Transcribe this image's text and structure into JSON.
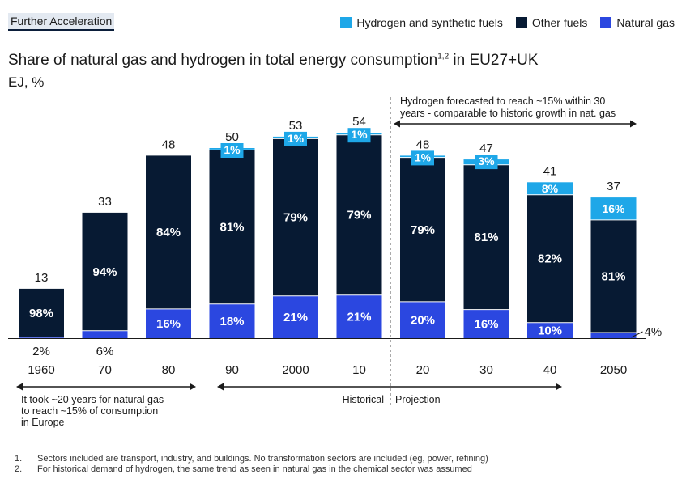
{
  "header": {
    "tag": "Further Acceleration"
  },
  "legend": [
    {
      "label": "Hydrogen and synthetic fuels",
      "color": "#1ea7e8"
    },
    {
      "label": "Other fuels",
      "color": "#071a33"
    },
    {
      "label": "Natural gas",
      "color": "#2b47e0"
    }
  ],
  "title": {
    "text": "Share of natural gas and hydrogen in total energy consumption",
    "sup": "1,2",
    "suffix": " in EU27+UK"
  },
  "subtitle": "EJ, %",
  "chart_data": {
    "type": "bar",
    "stacked": true,
    "categories": [
      "1960",
      "70",
      "80",
      "90",
      "2000",
      "10",
      "20",
      "30",
      "40",
      "2050"
    ],
    "totals": [
      13,
      33,
      48,
      50,
      53,
      54,
      48,
      47,
      41,
      37
    ],
    "series": [
      {
        "name": "Natural gas",
        "color": "#2b47e0",
        "shares": [
          2,
          6,
          16,
          18,
          21,
          21,
          20,
          16,
          10,
          4
        ],
        "labels": [
          "2%",
          "6%",
          "16%",
          "18%",
          "21%",
          "21%",
          "20%",
          "16%",
          "10%",
          "4%"
        ]
      },
      {
        "name": "Other fuels",
        "color": "#071a33",
        "shares": [
          98,
          94,
          84,
          81,
          79,
          79,
          79,
          81,
          82,
          81
        ],
        "labels": [
          "98%",
          "94%",
          "84%",
          "81%",
          "79%",
          "79%",
          "79%",
          "81%",
          "82%",
          "81%"
        ]
      },
      {
        "name": "Hydrogen and synthetic fuels",
        "color": "#1ea7e8",
        "shares": [
          0,
          0,
          0,
          1,
          1,
          1,
          1,
          3,
          8,
          16
        ],
        "labels": [
          "",
          "",
          "",
          "1%",
          "1%",
          "1%",
          "1%",
          "3%",
          "8%",
          "16%"
        ]
      }
    ],
    "annotations": {
      "hydrogen_forecast": "Hydrogen forecasted to reach ~15% within 30 years - comparable to historic growth in nat. gas",
      "gas_history": "It took ~20 years for natural gas to reach ~15% of consumption in Europe",
      "historical": "Historical",
      "projection": "Projection"
    }
  },
  "footnotes": [
    {
      "num": "1.",
      "text": "Sectors included are transport, industry, and buildings. No transformation sectors are included (eg, power, refining)"
    },
    {
      "num": "2.",
      "text": "For historical demand of hydrogen, the same trend as seen in natural gas in the chemical sector was assumed"
    }
  ]
}
